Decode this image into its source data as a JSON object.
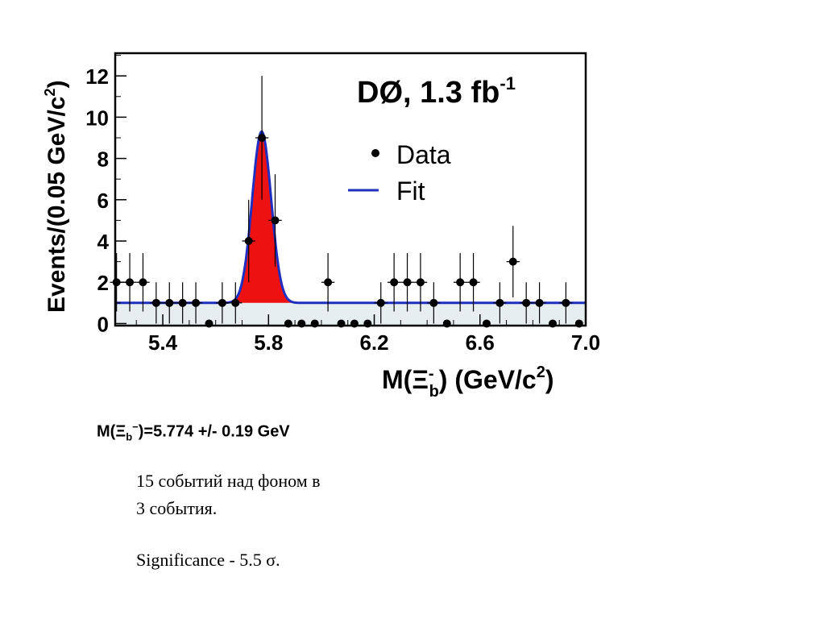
{
  "chart_data": {
    "type": "scatter",
    "experiment_label": "DØ, 1.3 fb",
    "experiment_label_sup": "-1",
    "xlabel": "M(Ξ",
    "xlabel_sub": "b",
    "xlabel_sup": "-",
    "xlabel_tail": ") (GeV/c",
    "xlabel_tail_sup": "2",
    "xlabel_end": ")",
    "ylabel": "Events/(0.05 GeV/c",
    "ylabel_sup": "2",
    "ylabel_end": ")",
    "xlim": [
      5.22,
      7.0
    ],
    "ylim": [
      -0.1,
      13.1
    ],
    "xticks": [
      5.4,
      5.8,
      6.2,
      6.6,
      7.0
    ],
    "xtick_labels": [
      "5.4",
      "5.8",
      "6.2",
      "6.6",
      "7.0"
    ],
    "yticks": [
      0,
      2,
      4,
      6,
      8,
      10,
      12
    ],
    "ytick_labels": [
      "0",
      "2",
      "4",
      "6",
      "8",
      "10",
      "12"
    ],
    "legend": {
      "placement": "top-right",
      "data_label": "Data",
      "fit_label": "Fit"
    },
    "bin_half_width": 0.025,
    "series": [
      {
        "name": "Data",
        "x": [
          5.225,
          5.275,
          5.325,
          5.375,
          5.425,
          5.475,
          5.525,
          5.575,
          5.625,
          5.675,
          5.725,
          5.775,
          5.825,
          5.875,
          5.925,
          5.975,
          6.025,
          6.075,
          6.125,
          6.175,
          6.225,
          6.275,
          6.325,
          6.375,
          6.425,
          6.475,
          6.525,
          6.575,
          6.625,
          6.675,
          6.725,
          6.775,
          6.825,
          6.875,
          6.925,
          6.975
        ],
        "y": [
          2,
          2,
          2,
          1,
          1,
          1,
          1,
          0,
          1,
          1,
          4,
          9,
          5,
          0,
          0,
          0,
          2,
          0,
          0,
          0,
          1,
          2,
          2,
          2,
          1,
          0,
          2,
          2,
          0,
          1,
          3,
          1,
          1,
          0,
          1,
          0
        ]
      },
      {
        "name": "Fit",
        "background": 1.0,
        "peak_mean": 5.774,
        "peak_sigma": 0.036,
        "peak_amplitude": 8.3
      }
    ]
  },
  "caption": {
    "mass_prefix": "M(Ξ",
    "mass_sub": "b",
    "mass_sup": "−",
    "mass_suffix": ")=5.774 +/- 0.19 GeV",
    "ru_line1": "15 событий над фоном в",
    "ru_line2": "3 события.",
    "significance": "Significance -  5.5 σ."
  },
  "colors": {
    "fit": "#1f2fbf",
    "signal_fill": "#ee1111",
    "background_fill": "#e6eef0",
    "frame": "#000000"
  }
}
